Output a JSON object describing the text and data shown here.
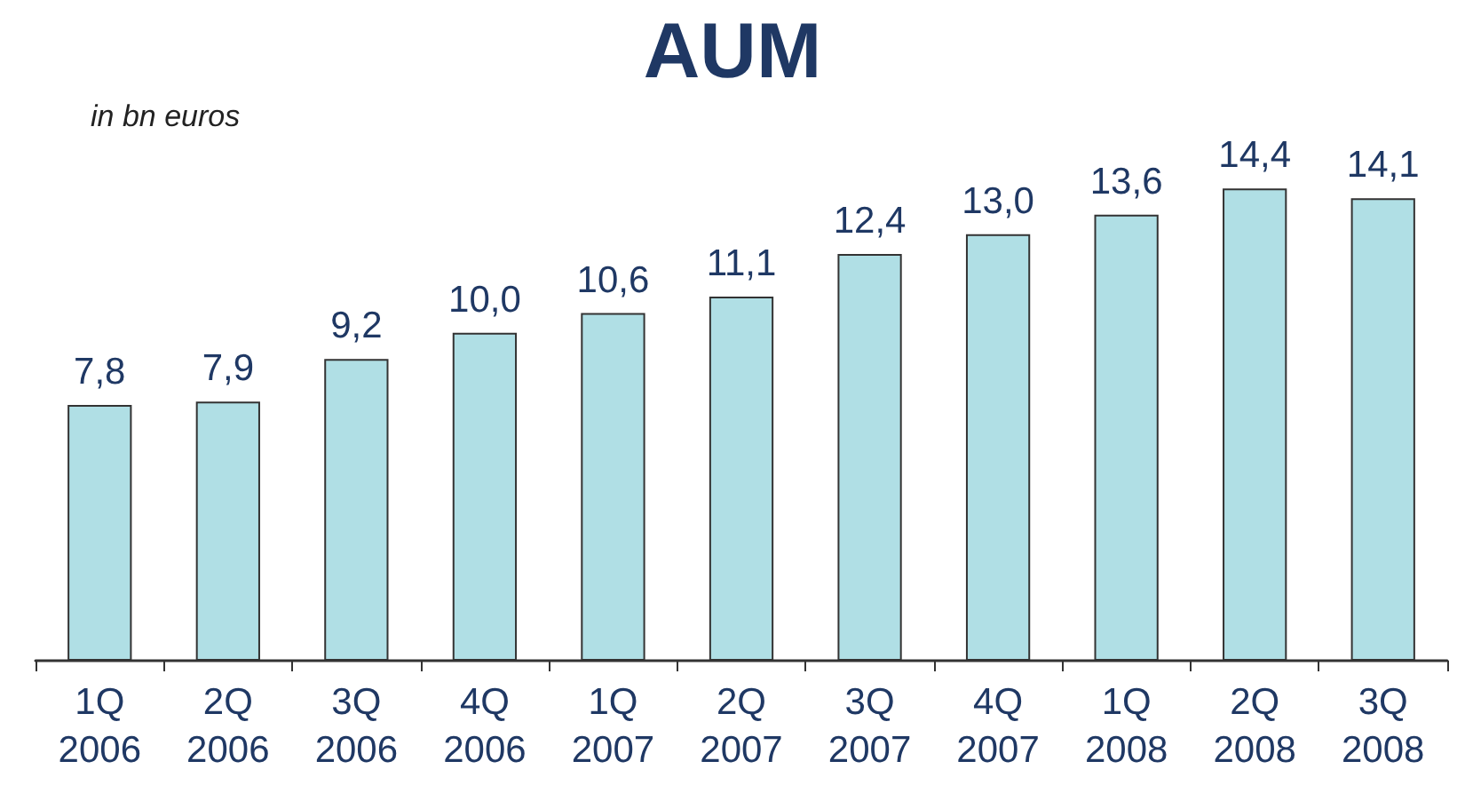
{
  "chart_data": {
    "type": "bar",
    "title": "AUM",
    "subtitle": "in bn euros",
    "categories": [
      "1Q 2006",
      "2Q 2006",
      "3Q 2006",
      "4Q 2006",
      "1Q 2007",
      "2Q 2007",
      "3Q 2007",
      "4Q 2007",
      "1Q 2008",
      "2Q 2008",
      "3Q 2008"
    ],
    "values": [
      7.8,
      7.9,
      9.2,
      10.0,
      10.6,
      11.1,
      12.4,
      13.0,
      13.6,
      14.4,
      14.1
    ],
    "value_labels": [
      "7,8",
      "7,9",
      "9,2",
      "10,0",
      "10,6",
      "11,1",
      "12,4",
      "13,0",
      "13,6",
      "14,4",
      "14,1"
    ],
    "color": "#b0dfe5"
  }
}
